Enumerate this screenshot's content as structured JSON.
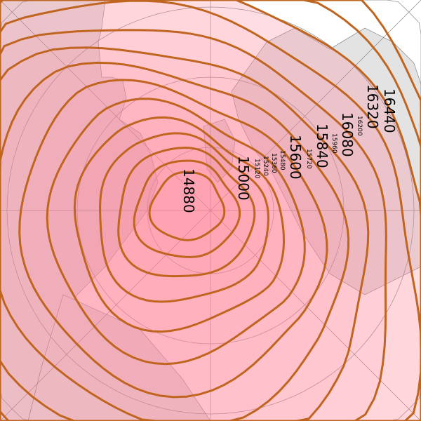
{
  "map": {
    "projection": "north-polar-stereographic",
    "variable": "geopotential height contours",
    "contour_color": "#c0651f",
    "fill_color": "#ff8a9a",
    "land_color": "#e3e3e3",
    "border_color": "#777777",
    "contour_levels": [
      14880,
      15000,
      15120,
      15240,
      15360,
      15480,
      15600,
      15720,
      15840,
      15960,
      16080,
      16200,
      16320,
      16440
    ],
    "labels": {
      "l14880": "14880",
      "l15000": "15000",
      "l15120": "15120",
      "l15240": "15240",
      "l15360": "15360",
      "l15480": "15480",
      "l15600": "15600",
      "l15720": "15720",
      "l15840": "15840",
      "l15960": "15960",
      "l16080": "16080",
      "l16200": "16200",
      "l16320": "16320",
      "l16440": "16440"
    }
  }
}
